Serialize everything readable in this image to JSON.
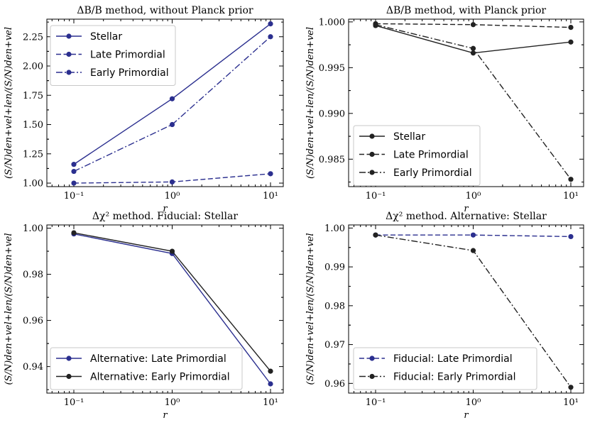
{
  "colors": {
    "blue": "#2b2f8f",
    "black": "#222222"
  },
  "chart_data": [
    {
      "type": "line",
      "title": "ΔB/B method, without Planck prior",
      "xlabel": "r",
      "ylabel": "(S/N)den+vel+len/(S/N)den+vel",
      "xscale": "log",
      "x": [
        0.1,
        1,
        10
      ],
      "xticklabels": [
        "10⁻¹",
        "10⁰",
        "10¹"
      ],
      "ylim": [
        0.97,
        2.4
      ],
      "yticks": [
        1.0,
        1.25,
        1.5,
        1.75,
        2.0,
        2.25
      ],
      "yticklabels": [
        "1.00",
        "1.25",
        "1.50",
        "1.75",
        "2.00",
        "2.25"
      ],
      "legend": "top-left",
      "series": [
        {
          "name": "Stellar",
          "values": [
            1.16,
            1.72,
            2.36
          ],
          "style": "solid",
          "color": "blue"
        },
        {
          "name": "Late Primordial",
          "values": [
            1.0,
            1.01,
            1.08
          ],
          "style": "dashed",
          "color": "blue"
        },
        {
          "name": "Early Primordial",
          "values": [
            1.1,
            1.5,
            2.25
          ],
          "style": "dashdot",
          "color": "blue"
        }
      ]
    },
    {
      "type": "line",
      "title": "ΔB/B method, with Planck prior",
      "xlabel": "r",
      "ylabel": "(S/N)den+vel+len/(S/N)den+vel",
      "xscale": "log",
      "x": [
        0.1,
        1,
        10
      ],
      "xticklabels": [
        "10⁻¹",
        "10⁰",
        "10¹"
      ],
      "ylim": [
        0.982,
        1.0003
      ],
      "yticks": [
        0.985,
        0.99,
        0.995,
        1.0
      ],
      "yticklabels": [
        "0.985",
        "0.990",
        "0.995",
        "1.000"
      ],
      "legend": "bottom-left",
      "series": [
        {
          "name": "Stellar",
          "values": [
            0.9996,
            0.9966,
            0.9978
          ],
          "style": "solid",
          "color": "black"
        },
        {
          "name": "Late Primordial",
          "values": [
            0.9998,
            0.9997,
            0.9994
          ],
          "style": "dashed",
          "color": "black"
        },
        {
          "name": "Early Primordial",
          "values": [
            0.9997,
            0.9971,
            0.9828
          ],
          "style": "dashdot",
          "color": "black"
        }
      ]
    },
    {
      "type": "line",
      "title": "Δχ² method. Fiducial: Stellar",
      "xlabel": "r",
      "ylabel": "(S/N)den+vel+len/(S/N)den+vel",
      "xscale": "log",
      "x": [
        0.1,
        1,
        10
      ],
      "xticklabels": [
        "10⁻¹",
        "10⁰",
        "10¹"
      ],
      "ylim": [
        0.9285,
        1.0014
      ],
      "yticks": [
        0.94,
        0.96,
        0.98,
        1.0
      ],
      "yticklabels": [
        "0.94",
        "0.96",
        "0.98",
        "1.00"
      ],
      "legend": "bottom-left",
      "series": [
        {
          "name": "Alternative: Late Primordial",
          "values": [
            0.9975,
            0.989,
            0.9325
          ],
          "style": "solid",
          "color": "blue"
        },
        {
          "name": "Alternative: Early Primordial",
          "values": [
            0.998,
            0.99,
            0.938
          ],
          "style": "solid",
          "color": "black"
        }
      ]
    },
    {
      "type": "line",
      "title": "Δχ² method. Alternative: Stellar",
      "xlabel": "r",
      "ylabel": "(S/N)den+vel+len/(S/N)den+vel",
      "xscale": "log",
      "x": [
        0.1,
        1,
        10
      ],
      "xticklabels": [
        "10⁻¹",
        "10⁰",
        "10¹"
      ],
      "ylim": [
        0.9575,
        1.0008
      ],
      "yticks": [
        0.96,
        0.97,
        0.98,
        0.99,
        1.0
      ],
      "yticklabels": [
        "0.96",
        "0.97",
        "0.98",
        "0.99",
        "1.00"
      ],
      "legend": "bottom-left",
      "series": [
        {
          "name": "Fiducial: Late Primordial",
          "values": [
            0.9982,
            0.9982,
            0.9978
          ],
          "style": "dashed",
          "color": "blue"
        },
        {
          "name": "Fiducial: Early Primordial",
          "values": [
            0.9982,
            0.9942,
            0.959
          ],
          "style": "dashdot",
          "color": "black"
        }
      ]
    }
  ]
}
